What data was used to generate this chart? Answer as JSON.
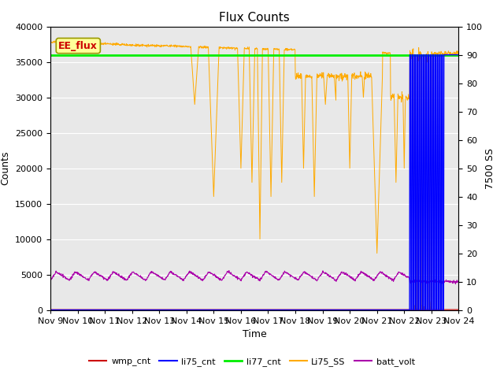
{
  "title": "Flux Counts",
  "ylabel_left": "Counts",
  "ylabel_right": "7500 SS",
  "xlabel": "Time",
  "ylim_left": [
    0,
    40000
  ],
  "ylim_right": [
    0,
    100
  ],
  "plot_bg_color": "#e8e8e8",
  "fig_bg_color": "#ffffff",
  "annotation_text": "EE_flux",
  "annotation_bg": "#ffff99",
  "annotation_border": "#999900",
  "x_tick_labels": [
    "Nov 9",
    "Nov 10",
    "Nov 11",
    "Nov 12",
    "Nov 13",
    "Nov 14",
    "Nov 15",
    "Nov 16",
    "Nov 17",
    "Nov 18",
    "Nov 19",
    "Nov 20",
    "Nov 21",
    "Nov 22",
    "Nov 23",
    "Nov 24"
  ],
  "li77_cnt_value": 36000,
  "li77_color": "#00ee00",
  "li75_color": "#0000ff",
  "wmp_color": "#cc0000",
  "li75ss_color": "#ffaa00",
  "batt_color": "#aa00aa",
  "legend_labels": [
    "wmp_cnt",
    "li75_cnt",
    "li77_cnt",
    "Li75_SS",
    "batt_volt"
  ],
  "title_fontsize": 11,
  "axis_label_fontsize": 9,
  "tick_fontsize": 8,
  "yticks_left": [
    0,
    5000,
    10000,
    15000,
    20000,
    25000,
    30000,
    35000,
    40000
  ],
  "yticks_right": [
    0,
    10,
    20,
    30,
    40,
    50,
    60,
    70,
    80,
    90,
    100
  ],
  "grid_color": "#ffffff",
  "grid_lw": 0.8
}
